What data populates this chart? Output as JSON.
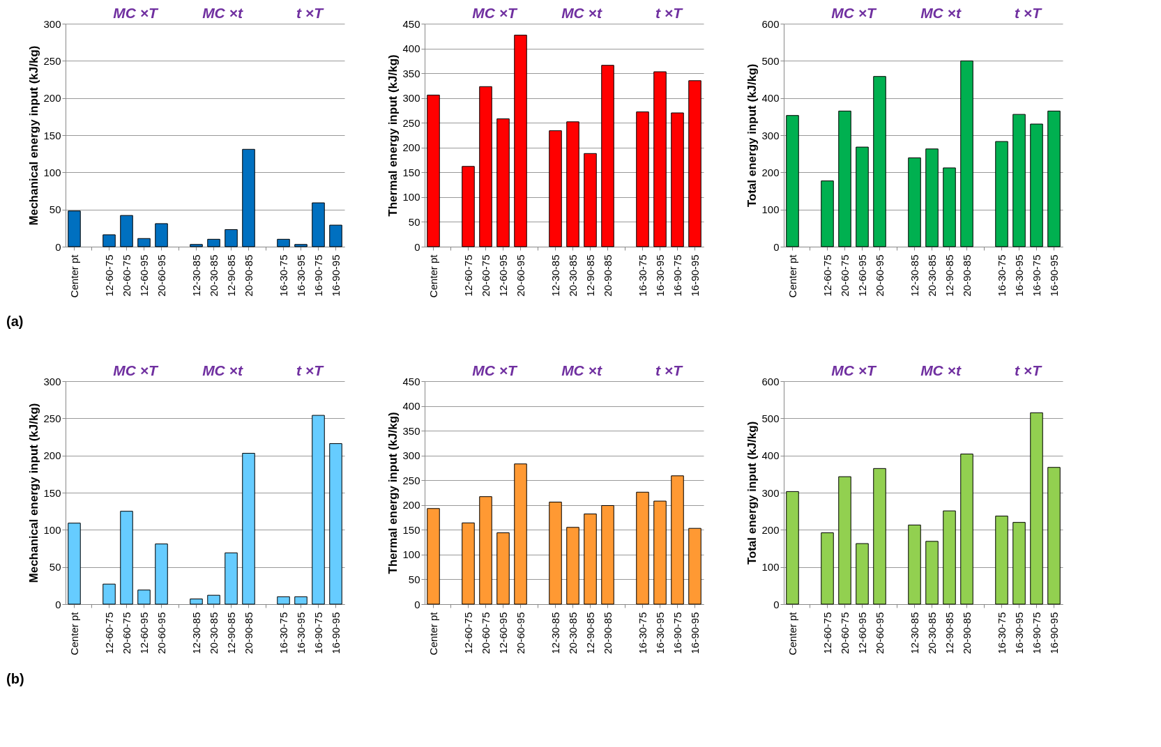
{
  "chart_data": [
    {
      "type": "bar",
      "categories": [
        "Center pt",
        null,
        "12-60-75",
        "20-60-75",
        "12-60-95",
        "20-60-95",
        null,
        "12-30-85",
        "20-30-85",
        "12-90-85",
        "20-90-85",
        null,
        "16-30-75",
        "16-30-95",
        "16-90-75",
        "16-90-95"
      ],
      "values": [
        48,
        null,
        16,
        42,
        11,
        31,
        null,
        3,
        10,
        23,
        131,
        null,
        10,
        3,
        59,
        29
      ],
      "color": "#0070c0",
      "ylabel": "Mechanical energy input (kJ/kg)",
      "ylim": [
        0,
        300
      ],
      "yticks": [
        0,
        50,
        100,
        150,
        200,
        250,
        300
      ],
      "grid": "y",
      "annotations": [
        "MC ×T",
        "MC ×t",
        "t ×T",
        "(a)"
      ]
    },
    {
      "type": "bar",
      "categories": [
        "Center pt",
        null,
        "12-60-75",
        "20-60-75",
        "12-60-95",
        "20-60-95",
        null,
        "12-30-85",
        "20-30-85",
        "12-90-85",
        "20-90-85",
        null,
        "16-30-75",
        "16-30-95",
        "16-90-75",
        "16-90-95"
      ],
      "values": [
        306,
        null,
        162,
        323,
        258,
        427,
        null,
        234,
        252,
        188,
        366,
        null,
        272,
        353,
        270,
        335
      ],
      "color": "#ff0000",
      "ylabel": "Thermal energy input (kJ/kg)",
      "ylim": [
        0,
        450
      ],
      "yticks": [
        0,
        50,
        100,
        150,
        200,
        250,
        300,
        350,
        400,
        450
      ],
      "grid": "y",
      "annotations": [
        "MC ×T",
        "MC ×t",
        "t ×T"
      ]
    },
    {
      "type": "bar",
      "categories": [
        "Center pt",
        null,
        "12-60-75",
        "20-60-75",
        "12-60-95",
        "20-60-95",
        null,
        "12-30-85",
        "20-30-85",
        "12-90-85",
        "20-90-85",
        null,
        "16-30-75",
        "16-30-95",
        "16-90-75",
        "16-90-95"
      ],
      "values": [
        353,
        null,
        177,
        365,
        268,
        458,
        null,
        239,
        263,
        212,
        500,
        null,
        283,
        356,
        330,
        365
      ],
      "color": "#00b050",
      "ylabel": "Total energy input (kJ/kg)",
      "ylim": [
        0,
        600
      ],
      "yticks": [
        0,
        100,
        200,
        300,
        400,
        500,
        600
      ],
      "grid": "y",
      "annotations": [
        "MC ×T",
        "MC ×t",
        "t ×T"
      ]
    },
    {
      "type": "bar",
      "categories": [
        "Center pt",
        null,
        "12-60-75",
        "20-60-75",
        "12-60-95",
        "20-60-95",
        null,
        "12-30-85",
        "20-30-85",
        "12-90-85",
        "20-90-85",
        null,
        "16-30-75",
        "16-30-95",
        "16-90-75",
        "16-90-95"
      ],
      "values": [
        109,
        null,
        27,
        125,
        19,
        81,
        null,
        7,
        12,
        69,
        203,
        null,
        10,
        10,
        254,
        216
      ],
      "color": "#66ccff",
      "ylabel": "Mechanical energy input (kJ/kg)",
      "ylim": [
        0,
        300
      ],
      "yticks": [
        0,
        50,
        100,
        150,
        200,
        250,
        300
      ],
      "grid": "y",
      "annotations": [
        "MC ×T",
        "MC ×t",
        "t ×T",
        "(b)"
      ]
    },
    {
      "type": "bar",
      "categories": [
        "Center pt",
        null,
        "12-60-75",
        "20-60-75",
        "12-60-95",
        "20-60-95",
        null,
        "12-30-85",
        "20-30-85",
        "12-90-85",
        "20-90-85",
        null,
        "16-30-75",
        "16-30-95",
        "16-90-75",
        "16-90-95"
      ],
      "values": [
        193,
        null,
        164,
        217,
        144,
        283,
        null,
        206,
        155,
        182,
        199,
        null,
        226,
        208,
        259,
        153
      ],
      "color": "#ff9933",
      "ylabel": "Thermal energy input (kJ/kg)",
      "ylim": [
        0,
        450
      ],
      "yticks": [
        0,
        50,
        100,
        150,
        200,
        250,
        300,
        350,
        400,
        450
      ],
      "grid": "y",
      "annotations": [
        "MC ×T",
        "MC ×t",
        "t ×T"
      ]
    },
    {
      "type": "bar",
      "categories": [
        "Center pt",
        null,
        "12-60-75",
        "20-60-75",
        "12-60-95",
        "20-60-95",
        null,
        "12-30-85",
        "20-30-85",
        "12-90-85",
        "20-90-85",
        null,
        "16-30-75",
        "16-30-95",
        "16-90-75",
        "16-90-95"
      ],
      "values": [
        303,
        null,
        192,
        343,
        163,
        365,
        null,
        213,
        169,
        251,
        404,
        null,
        237,
        220,
        515,
        368
      ],
      "color": "#92d050",
      "ylabel": "Total energy input (kJ/kg)",
      "ylim": [
        0,
        600
      ],
      "yticks": [
        0,
        100,
        200,
        300,
        400,
        500,
        600
      ],
      "grid": "y",
      "annotations": [
        "MC ×T",
        "MC ×t",
        "t ×T"
      ]
    }
  ]
}
